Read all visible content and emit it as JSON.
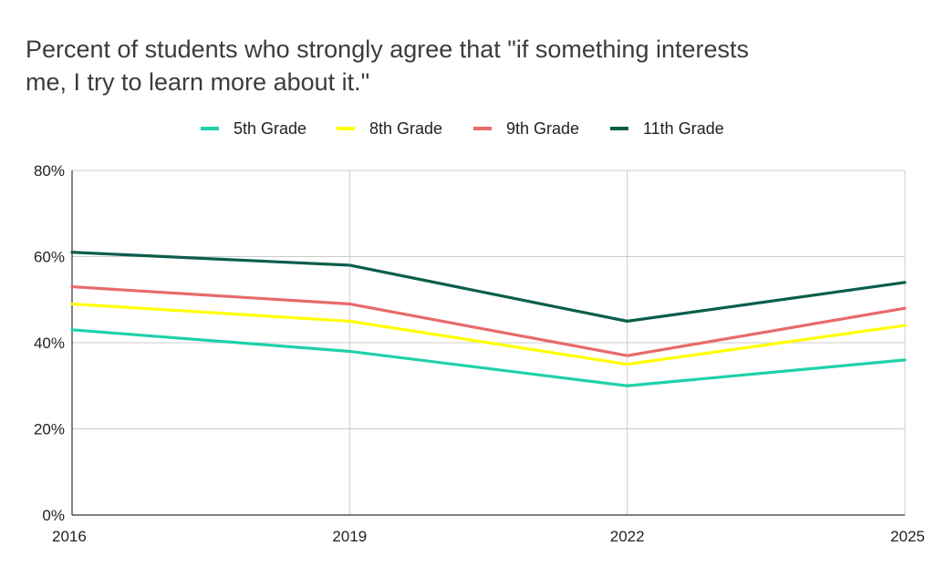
{
  "chart_data": {
    "type": "line",
    "title_lines": [
      "Percent of students who strongly agree that \"if something interests",
      "me, I try to learn more about it.\""
    ],
    "categories": [
      "2016",
      "2019",
      "2022",
      "2025"
    ],
    "series": [
      {
        "name": "5th Grade",
        "color": "#1ed1ab",
        "values": [
          43,
          38,
          30,
          36
        ]
      },
      {
        "name": "8th Grade",
        "color": "#ffff00",
        "values": [
          49,
          45,
          35,
          44
        ]
      },
      {
        "name": "9th Grade",
        "color": "#e86a6a",
        "values": [
          53,
          49,
          37,
          48
        ]
      },
      {
        "name": "11th Grade",
        "color": "#0b5e4b",
        "values": [
          61,
          58,
          45,
          54
        ]
      }
    ],
    "y_ticks": [
      "0%",
      "20%",
      "40%",
      "60%",
      "80%"
    ],
    "y_tick_values": [
      0,
      20,
      40,
      60,
      80
    ],
    "ylim": [
      0,
      80
    ],
    "xlabel": "",
    "ylabel": "",
    "legend_position": "top-center",
    "grid": true
  }
}
